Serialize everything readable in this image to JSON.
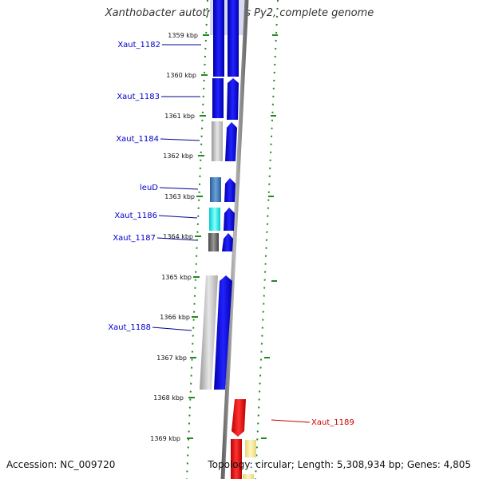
{
  "title": "Xanthobacter autotrophicus Py2, complete genome",
  "accession": "Accession: NC_009720",
  "topology": "Topology: circular; Length: 5,308,934 bp; Genes: 4,805",
  "colors": {
    "forward": "#0000ee",
    "highlight": "#ff0000",
    "backbone": "#888888",
    "dots": "#228822"
  },
  "ticks": [
    "1359 kbp",
    "1360 kbp",
    "1361 kbp",
    "1362 kbp",
    "1363 kbp",
    "1364 kbp",
    "1365 kbp",
    "1366 kbp",
    "1367 kbp",
    "1368 kbp",
    "1369 kbp"
  ],
  "gene_labels": [
    "Xaut_1182",
    "Xaut_1183",
    "Xaut_1184",
    "leuD",
    "Xaut_1186",
    "Xaut_1187",
    "Xaut_1188",
    "Xaut_1189"
  ]
}
